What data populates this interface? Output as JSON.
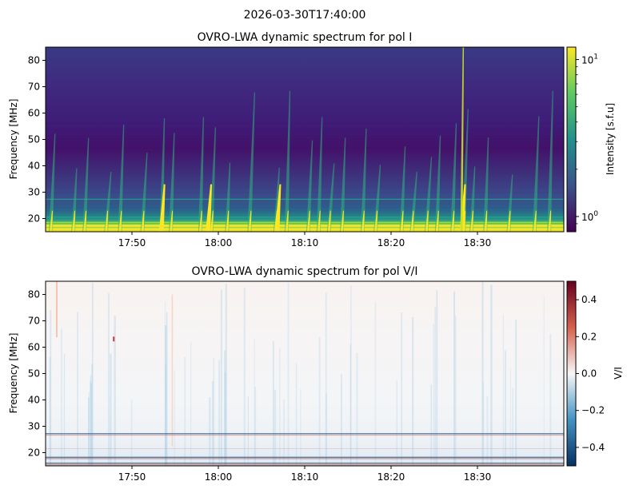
{
  "figure": {
    "suptitle": "2026-03-30T17:40:00"
  },
  "chart_data": [
    {
      "type": "heatmap",
      "title": "OVRO-LWA dynamic spectrum for pol I",
      "xlabel": "",
      "ylabel": "Frequency [MHz]",
      "x_range": [
        "17:40",
        "18:40"
      ],
      "xlim_minutes_after_1740": [
        0,
        60
      ],
      "ylim": [
        15,
        85
      ],
      "x_ticks": [
        "17:50",
        "18:00",
        "18:10",
        "18:20",
        "18:30"
      ],
      "y_ticks": [
        20,
        30,
        40,
        50,
        60,
        70,
        80
      ],
      "colorbar": {
        "label": "Intensity [s.f.u]",
        "scale": "log",
        "range": [
          0.8,
          12
        ],
        "tick_labels": [
          "10^0",
          "10^1"
        ],
        "tick_values": [
          1,
          10
        ],
        "colormap": "viridis",
        "colors": [
          "#440154",
          "#3b528b",
          "#21918c",
          "#5ec962",
          "#fde725"
        ]
      },
      "bursts_minutes_after_1740": [
        0.6,
        3.2,
        4.5,
        7.0,
        8.6,
        11.2,
        13.4,
        14.5,
        17.9,
        19.2,
        21.0,
        23.6,
        26.6,
        27.9,
        30.4,
        31.6,
        32.8,
        34.3,
        36.7,
        38.2,
        41.2,
        42.4,
        44.1,
        45.3,
        47.1,
        48.4,
        49.3,
        50.9,
        53.6,
        56.6,
        58.3
      ],
      "strong_burst_minutes_after_1740": [
        13.4,
        18.8,
        26.8,
        48.2
      ]
    },
    {
      "type": "heatmap",
      "title": "OVRO-LWA dynamic spectrum for pol V/I",
      "xlabel": "",
      "ylabel": "Frequency [MHz]",
      "x_range": [
        "17:40",
        "18:40"
      ],
      "xlim_minutes_after_1740": [
        0,
        60
      ],
      "ylim": [
        15,
        85
      ],
      "x_ticks": [
        "17:50",
        "18:00",
        "18:10",
        "18:20",
        "18:30"
      ],
      "y_ticks": [
        20,
        30,
        40,
        50,
        60,
        70,
        80
      ],
      "colorbar": {
        "label": "V/I",
        "scale": "linear",
        "range": [
          -0.5,
          0.5
        ],
        "tick_labels": [
          "0.4",
          "0.2",
          "0.0",
          "−0.2",
          "−0.4"
        ],
        "tick_values": [
          0.4,
          0.2,
          0.0,
          -0.2,
          -0.4
        ],
        "colormap": "RdBu_r",
        "colors": [
          "#053061",
          "#4393c3",
          "#f7f7f7",
          "#d6604d",
          "#67001f"
        ]
      },
      "horizontal_bands_mhz": [
        27,
        18,
        16
      ]
    }
  ]
}
